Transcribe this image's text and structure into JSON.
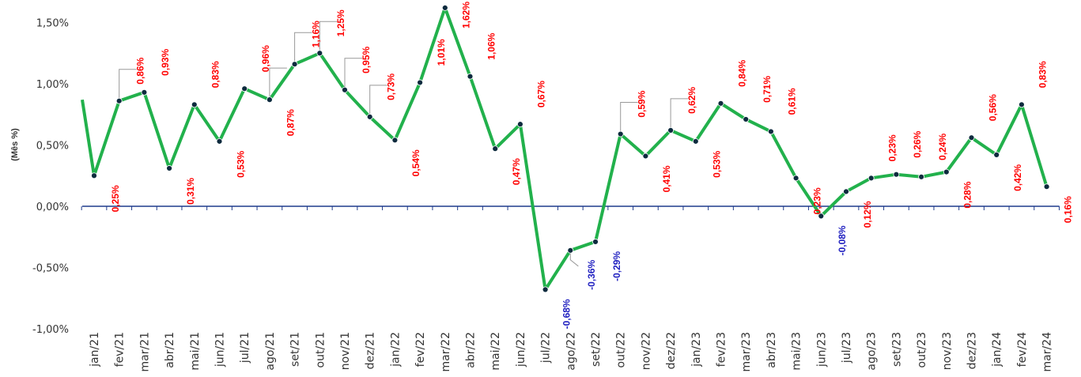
{
  "chart_data": {
    "type": "line",
    "title": "",
    "xlabel": "",
    "ylabel": "(Mês %)",
    "ylim": [
      -1.0,
      1.5
    ],
    "yticks": [
      -1.0,
      -0.5,
      0.0,
      0.5,
      1.0,
      1.5
    ],
    "ytick_labels": [
      "-1,00%",
      "-0,50%",
      "0,00%",
      "0,50%",
      "1,00%",
      "1,50%"
    ],
    "grid": false,
    "legend": "none",
    "first_point_partial": 0.87,
    "categories": [
      "jan/21",
      "fev/21",
      "mar/21",
      "abr/21",
      "mai/21",
      "jun/21",
      "jul/21",
      "ago/21",
      "set/21",
      "out/21",
      "nov/21",
      "dez/21",
      "jan/22",
      "fev/22",
      "mar/22",
      "abr/22",
      "mai/22",
      "jun/22",
      "jul/22",
      "ago/22",
      "set/22",
      "out/22",
      "nov/22",
      "dez/22",
      "jan/23",
      "fev/23",
      "mar/23",
      "abr/23",
      "mai/23",
      "jun/23",
      "jul/23",
      "ago/23",
      "set/23",
      "out/23",
      "nov/23",
      "dez/23",
      "jan/24",
      "fev/24",
      "mar/24"
    ],
    "values": [
      0.25,
      0.86,
      0.93,
      0.31,
      0.83,
      0.53,
      0.96,
      0.87,
      1.16,
      1.25,
      0.95,
      0.73,
      0.54,
      1.01,
      1.62,
      1.06,
      0.47,
      0.67,
      -0.68,
      -0.36,
      -0.29,
      0.59,
      0.41,
      0.62,
      0.53,
      0.84,
      0.71,
      0.61,
      0.23,
      -0.08,
      0.12,
      0.23,
      0.26,
      0.24,
      0.28,
      0.56,
      0.42,
      0.83,
      0.16
    ],
    "labels": [
      "0,25%",
      "0,86%",
      "0,93%",
      "0,31%",
      "0,83%",
      "0,53%",
      "0,96%",
      "0,87%",
      "1,16%",
      "1,25%",
      "0,95%",
      "0,73%",
      "0,54%",
      "1,01%",
      "1,62%",
      "1,06%",
      "0,47%",
      "0,67%",
      "-0,68%",
      "-0,36%",
      "-0,29%",
      "0,59%",
      "0,41%",
      "0,62%",
      "0,53%",
      "0,84%",
      "0,71%",
      "0,61%",
      "0,23%",
      "-0,08%",
      "0,12%",
      "0,23%",
      "0,26%",
      "0,24%",
      "0,28%",
      "0,56%",
      "0,42%",
      "0,83%",
      "0,16%"
    ],
    "colors": {
      "line": "#22b14c",
      "marker": "#0d2b3e",
      "axis": "#1f3b8c",
      "label_positive": "#ff0000",
      "label_negative": "#2020c0",
      "leader": "#999999"
    }
  }
}
